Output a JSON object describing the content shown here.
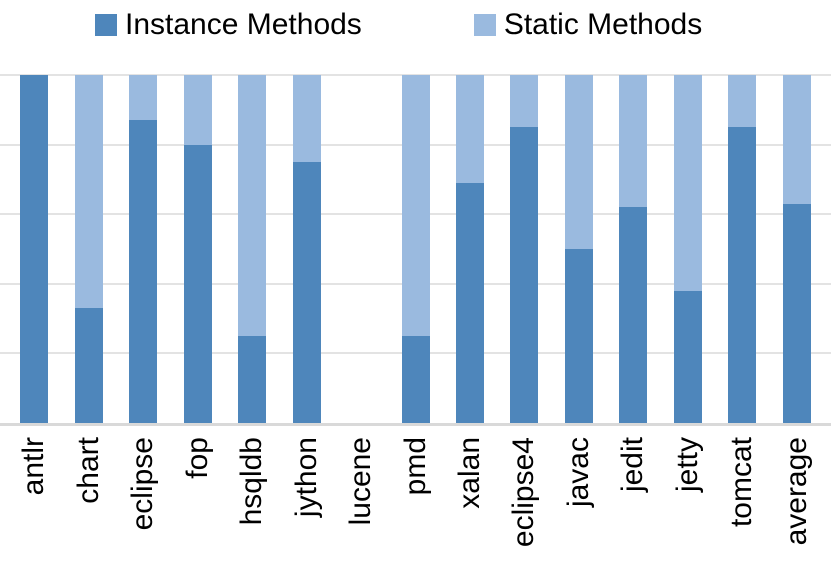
{
  "legend": {
    "items": [
      {
        "label": "Instance Methods",
        "color": "#4E86BB"
      },
      {
        "label": "Static Methods",
        "color": "#9ABADF"
      }
    ]
  },
  "chart_data": {
    "type": "bar",
    "stacked": true,
    "unit": "percent",
    "title": "",
    "xlabel": "",
    "ylabel": "",
    "ylim": [
      0,
      100
    ],
    "grid": true,
    "gridline_interval": 20,
    "gridlines": [
      0,
      20,
      40,
      60,
      80,
      100
    ],
    "legend_position": "top",
    "x_tick_rotation": 90,
    "y_tick_labels_visible": false,
    "categories": [
      "antlr",
      "chart",
      "eclipse",
      "fop",
      "hsqldb",
      "jython",
      "lucene",
      "pmd",
      "xalan",
      "eclipse4",
      "javac",
      "jedit",
      "jetty",
      "tomcat",
      "average"
    ],
    "series": [
      {
        "name": "Instance Methods",
        "color": "#4E86BB",
        "values": [
          100,
          33,
          87,
          80,
          25,
          75,
          0,
          25,
          69,
          85,
          50,
          62,
          38,
          85,
          63
        ]
      },
      {
        "name": "Static Methods",
        "color": "#9ABADF",
        "values": [
          0,
          67,
          13,
          20,
          75,
          25,
          0,
          75,
          31,
          15,
          50,
          38,
          62,
          15,
          37
        ]
      }
    ],
    "notes_visible_in_pixels_only": "lucene column has no bar"
  },
  "style": {
    "gridline_color": "#E3E3E3",
    "axis_line_color": "#D9D9D9",
    "background": "#ffffff",
    "text_color": "#000000"
  }
}
